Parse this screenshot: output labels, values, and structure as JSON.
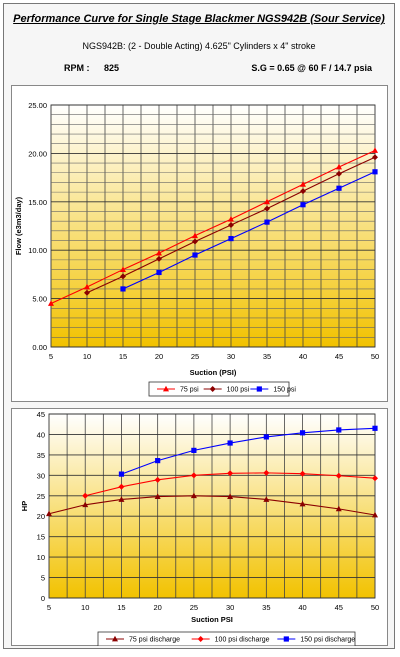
{
  "header": {
    "title": "Performance Curve for Single Stage Blackmer NGS942B (Sour Service)",
    "subtitle": "NGS942B: (2 - Double Acting) 4.625\" Cylinders x 4\" stroke",
    "rpm_label": "RPM :",
    "rpm_value": "825",
    "sg": "S.G = 0.65 @ 60 F / 14.7 psia"
  },
  "colors": {
    "red": "#ff0000",
    "darkred": "#8b0000",
    "blue": "#0000ff",
    "plot_top": "#ffffff",
    "plot_bottom": "#f2c200"
  },
  "chart_data": [
    {
      "type": "line",
      "title": "",
      "xlabel": "Suction (PSI)",
      "ylabel": "Flow (e3m3/day)",
      "x": [
        5,
        10,
        15,
        20,
        25,
        30,
        35,
        40,
        45,
        50
      ],
      "xticks": [
        "5",
        "10",
        "15",
        "20",
        "25",
        "30",
        "35",
        "40",
        "45",
        "50"
      ],
      "yticks": [
        "0.00",
        "5.00",
        "10.00",
        "15.00",
        "20.00",
        "25.00"
      ],
      "ylim": [
        0,
        25
      ],
      "grid": true,
      "legend": "bottom",
      "series": [
        {
          "name": "75 psi",
          "color": "#ff0000",
          "marker": "triangle",
          "values": [
            4.5,
            6.2,
            8.0,
            9.7,
            11.5,
            13.2,
            15.0,
            16.8,
            18.6,
            20.3
          ]
        },
        {
          "name": "100 psi",
          "color": "#8b0000",
          "marker": "diamond",
          "values": [
            null,
            5.6,
            7.3,
            9.1,
            10.9,
            12.6,
            14.3,
            16.1,
            17.9,
            19.6
          ]
        },
        {
          "name": "150 psi",
          "color": "#0000ff",
          "marker": "square",
          "values": [
            null,
            null,
            6.0,
            7.7,
            9.5,
            11.2,
            12.9,
            14.7,
            16.4,
            18.1
          ]
        }
      ]
    },
    {
      "type": "line",
      "title": "",
      "xlabel": "Suction PSI",
      "ylabel": "HP",
      "x": [
        5,
        10,
        15,
        20,
        25,
        30,
        35,
        40,
        45,
        50
      ],
      "xticks": [
        "5",
        "10",
        "15",
        "20",
        "25",
        "30",
        "35",
        "40",
        "45",
        "50"
      ],
      "yticks": [
        "0",
        "5",
        "10",
        "15",
        "20",
        "25",
        "30",
        "35",
        "40",
        "45"
      ],
      "ylim": [
        0,
        45
      ],
      "grid": true,
      "legend": "bottom",
      "series": [
        {
          "name": "75 psi discharge",
          "color": "#8b0000",
          "marker": "triangle",
          "values": [
            20.6,
            22.8,
            24.1,
            24.8,
            25.0,
            24.8,
            24.1,
            23.0,
            21.8,
            20.3
          ]
        },
        {
          "name": "100 psi discharge",
          "color": "#ff0000",
          "marker": "diamond",
          "values": [
            null,
            25.0,
            27.2,
            28.9,
            30.0,
            30.5,
            30.6,
            30.4,
            29.9,
            29.3
          ]
        },
        {
          "name": "150 psi discharge",
          "color": "#0000ff",
          "marker": "square",
          "values": [
            null,
            null,
            30.3,
            33.6,
            36.1,
            37.9,
            39.4,
            40.4,
            41.1,
            41.5
          ]
        }
      ]
    }
  ]
}
